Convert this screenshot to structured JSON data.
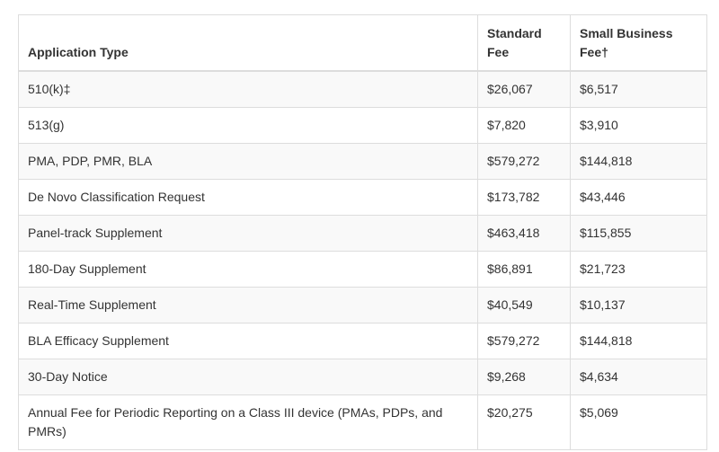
{
  "table": {
    "headers": [
      "Application Type",
      "Standard Fee",
      "Small Business Fee†"
    ],
    "rows": [
      [
        "510(k)‡",
        "$26,067",
        "$6,517"
      ],
      [
        "513(g)",
        "$7,820",
        "$3,910"
      ],
      [
        "PMA, PDP, PMR, BLA",
        "$579,272",
        "$144,818"
      ],
      [
        "De Novo Classification Request",
        "$173,782",
        "$43,446"
      ],
      [
        "Panel-track Supplement",
        "$463,418",
        "$115,855"
      ],
      [
        "180-Day Supplement",
        "$86,891",
        "$21,723"
      ],
      [
        "Real-Time Supplement",
        "$40,549",
        "$10,137"
      ],
      [
        "BLA Efficacy Supplement",
        "$579,272",
        "$144,818"
      ],
      [
        "30-Day Notice",
        "$9,268",
        "$4,634"
      ],
      [
        "Annual Fee for Periodic Reporting on a Class III device (PMAs, PDPs, and PMRs)",
        "$20,275",
        "$5,069"
      ]
    ]
  }
}
